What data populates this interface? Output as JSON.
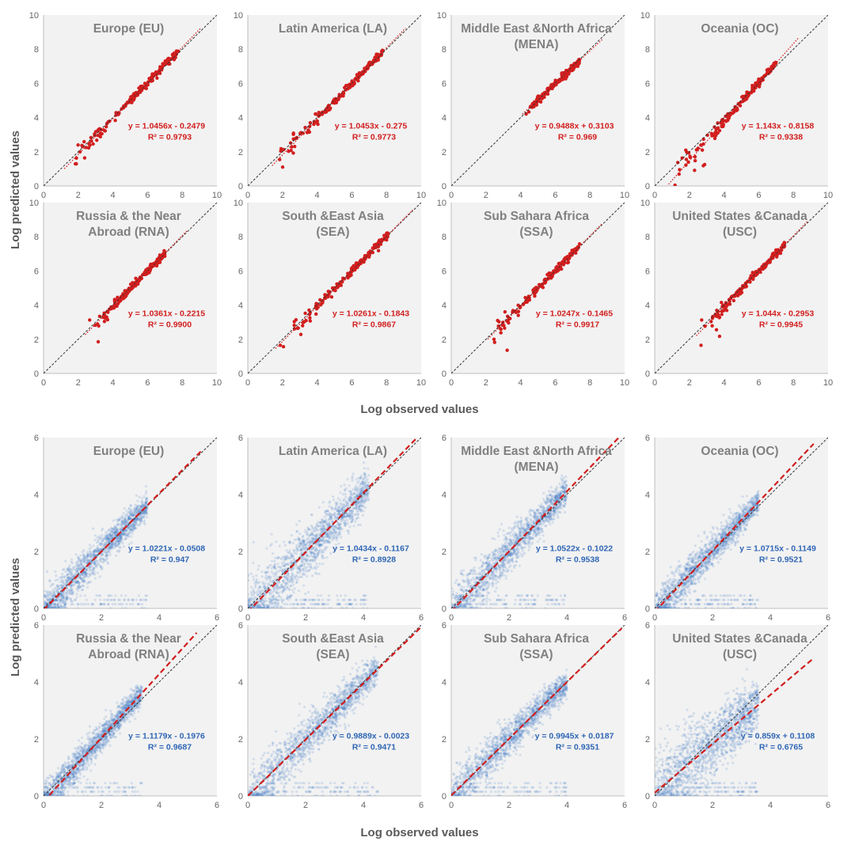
{
  "figure": {
    "top_block": {
      "ylabel": "Log predicted values",
      "xlabel": "Log observed values"
    },
    "bottom_block": {
      "ylabel": "Log predicted values",
      "xlabel": "Log observed values"
    }
  },
  "colors": {
    "panel_bg": "#f2f2f2",
    "top_points": "#d21e1e",
    "top_equation": "#d21e1e",
    "bottom_points": "#4a7fc8",
    "bottom_equation": "#2f66b5",
    "fit_line": "#d21e1e",
    "identity_line": "#333333",
    "title": "#808080",
    "tick": "#666666"
  },
  "chart_data": [
    {
      "block": "top",
      "type": "scatter",
      "title": [
        "Europe (EU)"
      ],
      "axis_range": [
        0,
        10
      ],
      "ticks": [
        0,
        2,
        4,
        6,
        8,
        10
      ],
      "slope": 1.0456,
      "intercept": -0.2479,
      "equation": "y = 1.0456x - 0.2479",
      "r2": "R² = 0.9793",
      "data_range": [
        1.4,
        7.8
      ]
    },
    {
      "block": "top",
      "type": "scatter",
      "title": [
        "Latin America (LA)"
      ],
      "axis_range": [
        0,
        10
      ],
      "ticks": [
        0,
        2,
        4,
        6,
        8,
        10
      ],
      "slope": 1.0453,
      "intercept": -0.275,
      "equation": "y = 1.0453x - 0.275",
      "r2": "R² = 0.9773",
      "data_range": [
        1.6,
        7.8
      ]
    },
    {
      "block": "top",
      "type": "scatter",
      "title": [
        "Middle East &North Africa",
        "(MENA)"
      ],
      "axis_range": [
        0,
        10
      ],
      "ticks": [
        0,
        2,
        4,
        6,
        8,
        10
      ],
      "slope": 0.9488,
      "intercept": 0.3103,
      "equation": "y = 0.9488x + 0.3103",
      "r2": "R² = 0.969",
      "data_range": [
        4.3,
        7.4
      ]
    },
    {
      "block": "top",
      "type": "scatter",
      "title": [
        "Oceania (OC)"
      ],
      "axis_range": [
        0,
        10
      ],
      "ticks": [
        0,
        2,
        4,
        6,
        8,
        10
      ],
      "slope": 1.143,
      "intercept": -0.8158,
      "equation": "y = 1.143x - 0.8158",
      "r2": "R² = 0.9338",
      "data_range": [
        1.0,
        7.0
      ]
    },
    {
      "block": "top",
      "type": "scatter",
      "title": [
        "Russia & the Near",
        "Abroad (RNA)"
      ],
      "axis_range": [
        0,
        10
      ],
      "ticks": [
        0,
        2,
        4,
        6,
        8,
        10
      ],
      "slope": 1.0361,
      "intercept": -0.2215,
      "equation": "y = 1.0361x - 0.2215",
      "r2": "R² = 0.9900",
      "data_range": [
        2.6,
        7.0
      ]
    },
    {
      "block": "top",
      "type": "scatter",
      "title": [
        "South &East Asia",
        "(SEA)"
      ],
      "axis_range": [
        0,
        10
      ],
      "ticks": [
        0,
        2,
        4,
        6,
        8,
        10
      ],
      "slope": 1.0261,
      "intercept": -0.1843,
      "equation": "y = 1.0261x - 0.1843",
      "r2": "R² = 0.9867",
      "data_range": [
        1.8,
        8.2
      ]
    },
    {
      "block": "top",
      "type": "scatter",
      "title": [
        "Sub Sahara Africa",
        "(SSA)"
      ],
      "axis_range": [
        0,
        10
      ],
      "ticks": [
        0,
        2,
        4,
        6,
        8,
        10
      ],
      "slope": 1.0247,
      "intercept": -0.1465,
      "equation": "y = 1.0247x - 0.1465",
      "r2": "R² = 0.9917",
      "data_range": [
        2.3,
        7.4
      ]
    },
    {
      "block": "top",
      "type": "scatter",
      "title": [
        "United States &Canada",
        "(USC)"
      ],
      "axis_range": [
        0,
        10
      ],
      "ticks": [
        0,
        2,
        4,
        6,
        8,
        10
      ],
      "slope": 1.044,
      "intercept": -0.2953,
      "equation": "y = 1.044x - 0.2953",
      "r2": "R² = 0.9945",
      "data_range": [
        2.6,
        7.5
      ]
    },
    {
      "block": "bottom",
      "type": "scatter",
      "title": [
        "Europe (EU)"
      ],
      "axis_range": [
        0,
        6
      ],
      "ticks": [
        0,
        2,
        4,
        6
      ],
      "slope": 1.0221,
      "intercept": -0.0508,
      "equation": "y = 1.0221x - 0.0508",
      "r2": "R² = 0.947",
      "data_range": [
        0,
        3.6
      ],
      "spread": 0.35
    },
    {
      "block": "bottom",
      "type": "scatter",
      "title": [
        "Latin America (LA)"
      ],
      "axis_range": [
        0,
        6
      ],
      "ticks": [
        0,
        2,
        4,
        6
      ],
      "slope": 1.0434,
      "intercept": -0.1167,
      "equation": "y = 1.0434x - 0.1167",
      "r2": "R² = 0.8928",
      "data_range": [
        0,
        4.2
      ],
      "spread": 0.55
    },
    {
      "block": "bottom",
      "type": "scatter",
      "title": [
        "Middle East &North Africa",
        "(MENA)"
      ],
      "axis_range": [
        0,
        6
      ],
      "ticks": [
        0,
        2,
        4,
        6
      ],
      "slope": 1.0522,
      "intercept": -0.1022,
      "equation": "y = 1.0522x - 0.1022",
      "r2": "R² = 0.9538",
      "data_range": [
        0,
        4.0
      ],
      "spread": 0.4
    },
    {
      "block": "bottom",
      "type": "scatter",
      "title": [
        "Oceania (OC)"
      ],
      "axis_range": [
        0,
        6
      ],
      "ticks": [
        0,
        2,
        4,
        6
      ],
      "slope": 1.0715,
      "intercept": -0.1149,
      "equation": "y = 1.0715x - 0.1149",
      "r2": "R² = 0.9521",
      "data_range": [
        0,
        3.6
      ],
      "spread": 0.35
    },
    {
      "block": "bottom",
      "type": "scatter",
      "title": [
        "Russia & the Near",
        "Abroad (RNA)"
      ],
      "axis_range": [
        0,
        6
      ],
      "ticks": [
        0,
        2,
        4,
        6
      ],
      "slope": 1.1179,
      "intercept": -0.1976,
      "equation": "y = 1.1179x - 0.1976",
      "r2": "R² = 0.9687",
      "data_range": [
        0,
        3.4
      ],
      "spread": 0.3
    },
    {
      "block": "bottom",
      "type": "scatter",
      "title": [
        "South &East Asia",
        "(SEA)"
      ],
      "axis_range": [
        0,
        6
      ],
      "ticks": [
        0,
        2,
        4,
        6
      ],
      "slope": 0.9889,
      "intercept": -0.0023,
      "equation": "y = 0.9889x - 0.0023",
      "r2": "R² = 0.9471",
      "data_range": [
        0,
        4.5
      ],
      "spread": 0.45
    },
    {
      "block": "bottom",
      "type": "scatter",
      "title": [
        "Sub Sahara Africa",
        "(SSA)"
      ],
      "axis_range": [
        0,
        6
      ],
      "ticks": [
        0,
        2,
        4,
        6
      ],
      "slope": 0.9945,
      "intercept": 0.0187,
      "equation": "y = 0.9945x + 0.0187",
      "r2": "R² = 0.9351",
      "data_range": [
        0,
        4.0
      ],
      "spread": 0.35
    },
    {
      "block": "bottom",
      "type": "scatter",
      "title": [
        "United States &Canada",
        "(USC)"
      ],
      "axis_range": [
        0,
        6
      ],
      "ticks": [
        0,
        2,
        4,
        6
      ],
      "slope": 0.859,
      "intercept": 0.1108,
      "equation": "y = 0.859x + 0.1108",
      "r2": "R² = 0.6765",
      "data_range": [
        0,
        3.6
      ],
      "spread": 0.75
    }
  ]
}
